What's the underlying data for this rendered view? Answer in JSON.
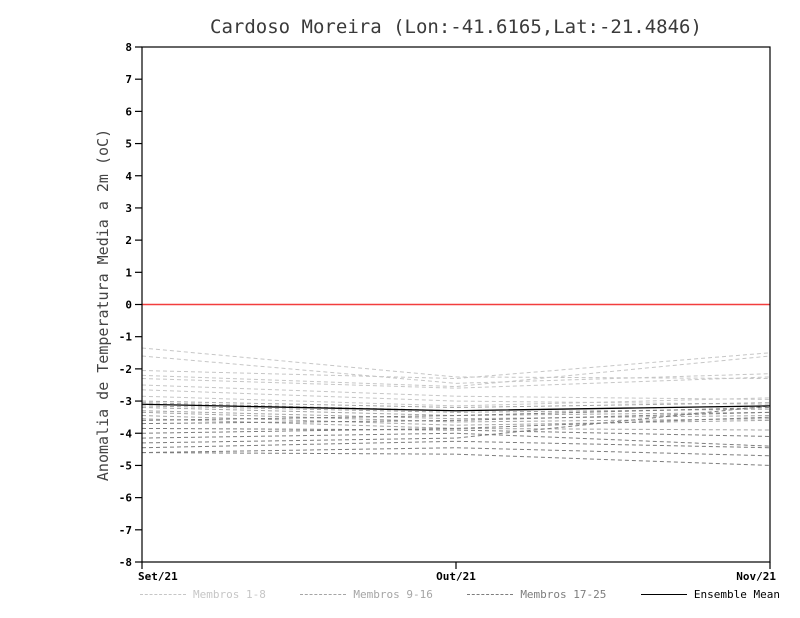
{
  "chart_data": {
    "type": "line",
    "title": "Cardoso Moreira (Lon:-41.6165,Lat:-21.4846)",
    "ylabel": "Anomalia de Temperatura Media a 2m (oC)",
    "x_categories": [
      "Set/21",
      "Out/21",
      "Nov/21"
    ],
    "ylim": [
      -8,
      8
    ],
    "yticks": [
      -8,
      -7,
      -6,
      -5,
      -4,
      -3,
      -2,
      -1,
      0,
      1,
      2,
      3,
      4,
      5,
      6,
      7,
      8
    ],
    "grid": "off",
    "legend_position": "bottom",
    "zero_line": {
      "y": 0,
      "color": "#f23d3d"
    },
    "groups": [
      {
        "name": "Membros 1-8",
        "color": "#c6c6c6",
        "style": "dashed",
        "members": [
          [
            -1.35,
            -2.25,
            -2.3
          ],
          [
            -1.6,
            -2.45,
            -2.15
          ],
          [
            -2.05,
            -2.3,
            -1.5
          ],
          [
            -2.2,
            -2.55,
            -1.6
          ],
          [
            -2.3,
            -2.6,
            -2.25
          ],
          [
            -2.5,
            -2.85,
            -2.95
          ],
          [
            -2.65,
            -3.0,
            -3.1
          ],
          [
            -2.85,
            -3.15,
            -2.9
          ]
        ]
      },
      {
        "name": "Membros 9-16",
        "color": "#a5a5a5",
        "style": "dashed",
        "members": [
          [
            -3.0,
            -3.2,
            -3.05
          ],
          [
            -3.05,
            -3.3,
            -3.15
          ],
          [
            -3.15,
            -3.35,
            -3.25
          ],
          [
            -3.2,
            -3.45,
            -3.35
          ],
          [
            -3.3,
            -3.55,
            -3.45
          ],
          [
            -3.35,
            -3.65,
            -3.55
          ],
          [
            -3.45,
            -3.75,
            -3.6
          ],
          [
            -3.55,
            -3.85,
            -3.9
          ]
        ]
      },
      {
        "name": "Membros 17-25",
        "color": "#7d7d7d",
        "style": "dashed",
        "members": [
          [
            -3.6,
            -3.45,
            -3.2
          ],
          [
            -3.7,
            -3.6,
            -3.35
          ],
          [
            -3.85,
            -3.9,
            -4.1
          ],
          [
            -4.0,
            -3.85,
            -3.5
          ],
          [
            -4.15,
            -4.0,
            -4.4
          ],
          [
            -4.3,
            -4.15,
            -3.15
          ],
          [
            -4.45,
            -4.25,
            -4.45
          ],
          [
            -4.6,
            -4.45,
            -4.7
          ],
          [
            -4.6,
            -4.65,
            -5.0
          ]
        ]
      }
    ],
    "mean": {
      "name": "Ensemble Mean",
      "color": "#000000",
      "style": "solid",
      "values": [
        -3.1,
        -3.3,
        -3.15
      ]
    }
  }
}
